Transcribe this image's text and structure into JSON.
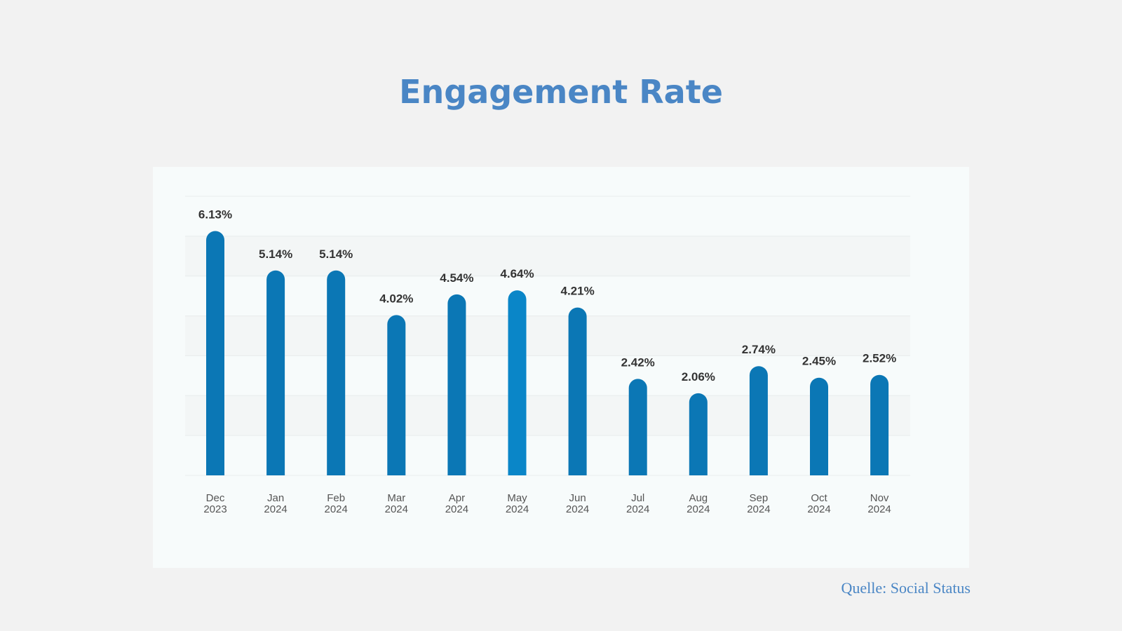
{
  "page": {
    "title": "Engagement Rate",
    "source": "Quelle: Social Status"
  },
  "colors": {
    "title": "#4a86c5",
    "bar": "#0b77b5",
    "bar_highlight": "#0a86c8",
    "label": "#333333",
    "tick": "#555555",
    "band": "#f3f6f6",
    "gridline": "#e8ecec"
  },
  "chart_data": {
    "type": "bar",
    "title": "",
    "xlabel": "",
    "ylabel": "",
    "categories": [
      [
        "Dec",
        "2023"
      ],
      [
        "Jan",
        "2024"
      ],
      [
        "Feb",
        "2024"
      ],
      [
        "Mar",
        "2024"
      ],
      [
        "Apr",
        "2024"
      ],
      [
        "May",
        "2024"
      ],
      [
        "Jun",
        "2024"
      ],
      [
        "Jul",
        "2024"
      ],
      [
        "Aug",
        "2024"
      ],
      [
        "Sep",
        "2024"
      ],
      [
        "Oct",
        "2024"
      ],
      [
        "Nov",
        "2024"
      ]
    ],
    "values": [
      6.13,
      5.14,
      5.14,
      4.02,
      4.54,
      4.64,
      4.21,
      2.42,
      2.06,
      2.74,
      2.45,
      2.52
    ],
    "value_labels": [
      "6.13%",
      "5.14%",
      "5.14%",
      "4.02%",
      "4.54%",
      "4.64%",
      "4.21%",
      "2.42%",
      "2.06%",
      "2.74%",
      "2.45%",
      "2.52%"
    ],
    "ylim": [
      0,
      7
    ],
    "highlight_index": 5,
    "grid": true,
    "y_tick_labels_visible": false,
    "legend": "none"
  }
}
